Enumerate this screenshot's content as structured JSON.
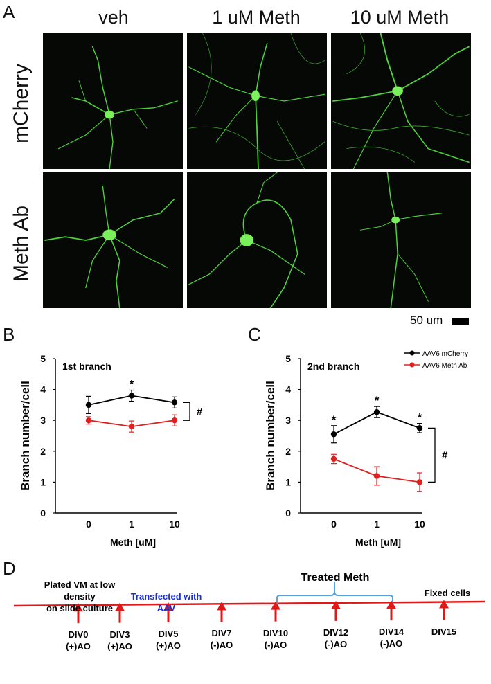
{
  "figure": {
    "panel_labels": [
      "A",
      "B",
      "C",
      "D"
    ],
    "columns": [
      "veh",
      "1 uM Meth",
      "10 uM Meth"
    ],
    "rows": [
      "mCherry",
      "Meth Ab"
    ],
    "scale_bar": "50 um",
    "colors": {
      "neuron": "#55e03c",
      "black_series": "#000000",
      "red_series": "#e02020",
      "bracket": "#5aa0d8",
      "timeline": "#e01818",
      "transfect_text": "#1a2ed8"
    }
  },
  "chart_data": [
    {
      "type": "line",
      "panel": "B",
      "title": "1st branch",
      "xlabel": "Meth [uM]",
      "ylabel": "Branch number/cell",
      "categories": [
        "0",
        "1",
        "10"
      ],
      "ylim": [
        0,
        5
      ],
      "yticks": [
        "0",
        "1",
        "2",
        "3",
        "4",
        "5"
      ],
      "series": [
        {
          "color": "#000000",
          "values": [
            3.5,
            3.8,
            3.58
          ],
          "errors": [
            0.28,
            0.18,
            0.18
          ],
          "stars": [
            "",
            "*",
            ""
          ]
        },
        {
          "color": "#e02020",
          "values": [
            3.0,
            2.8,
            3.0
          ],
          "errors": [
            0.12,
            0.18,
            0.18
          ],
          "stars": [
            "",
            "",
            ""
          ]
        }
      ],
      "significance": "#",
      "legend": false
    },
    {
      "type": "line",
      "panel": "C",
      "title": "2nd branch",
      "xlabel": "Meth [uM]",
      "ylabel": "Branch number/cell",
      "categories": [
        "0",
        "1",
        "10"
      ],
      "ylim": [
        0,
        5
      ],
      "yticks": [
        "0",
        "1",
        "2",
        "3",
        "4",
        "5"
      ],
      "series": [
        {
          "name": "AAV6 mCherry",
          "color": "#000000",
          "values": [
            2.55,
            3.27,
            2.75
          ],
          "errors": [
            0.28,
            0.18,
            0.15
          ],
          "stars": [
            "*",
            "*",
            "*"
          ]
        },
        {
          "name": "AAV6 Meth Ab",
          "color": "#e02020",
          "values": [
            1.75,
            1.2,
            1.0
          ],
          "errors": [
            0.15,
            0.3,
            0.3
          ],
          "stars": [
            "",
            "",
            ""
          ]
        }
      ],
      "significance": "#",
      "legend": true,
      "legend_placement": "top-right"
    }
  ],
  "timeline": {
    "bracket_label": "Treated Meth",
    "annotations": {
      "plated": "Plated VM at low density on slide culture",
      "plated_lines": [
        "Plated VM at low",
        "density",
        "on slide culture"
      ],
      "transfected_lines": [
        "Transfected with",
        "AAV"
      ],
      "fixed": "Fixed cells"
    },
    "points": [
      {
        "day": "DIV0",
        "ao": "(+)AO"
      },
      {
        "day": "DIV3",
        "ao": "(+)AO"
      },
      {
        "day": "DIV5",
        "ao": "(+)AO"
      },
      {
        "day": "DIV7",
        "ao": "(-)AO"
      },
      {
        "day": "DIV10",
        "ao": "(-)AO"
      },
      {
        "day": "DIV12",
        "ao": "(-)AO"
      },
      {
        "day": "DIV14",
        "ao": "(-)AO"
      },
      {
        "day": "DIV15",
        "ao": ""
      }
    ]
  }
}
